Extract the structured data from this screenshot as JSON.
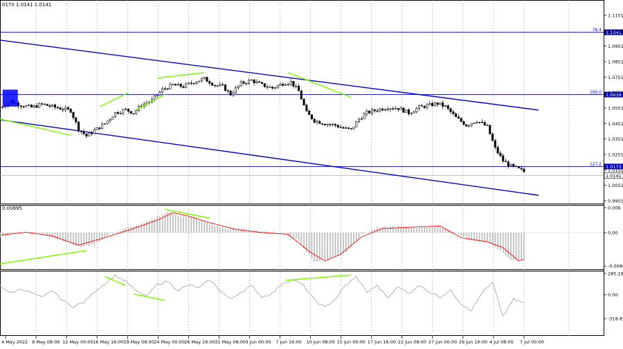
{
  "header": {
    "ohlc": "0170 1.0141 1.0141"
  },
  "colors": {
    "candle": "#000000",
    "channel": "#0000cc",
    "fibo": "#0000cc",
    "divergence": "#7cfc00",
    "macd_hist": "#b8b8b8",
    "macd_signal": "#ff0000",
    "cci_line": "#b8b8b8",
    "marker": "#0000ff",
    "grid": "#a0a0a0",
    "axis": "#000000"
  },
  "chart_data": [
    {
      "type": "candlestick",
      "panel": "price",
      "ylim": [
        0.9951,
        1.1151
      ],
      "yticks": [
        "1.1151",
        "1.1051",
        "1.0951",
        "1.0851",
        "1.0751",
        "1.0651",
        "1.0551",
        "1.0451",
        "1.0351",
        "1.0251",
        "1.0151",
        "1.0051",
        "0.9951"
      ],
      "xticks": [
        "4 May 2022",
        "9 May 08:00",
        "12 May 00:00",
        "16 May 16:00",
        "19 May 08:00",
        "24 May 00:00",
        "26 May 16:00",
        "31 May 08:00",
        "3 Jun 00:00",
        "7 Jun 16:00",
        "10 Jun 08:00",
        "15 Jun 00:00",
        "17 Jun 16:00",
        "22 Jun 08:00",
        "27 Jun 00:00",
        "29 Jun 16:00",
        "4 Jul 08:00",
        "7 Jul 00:00"
      ],
      "close_path": [
        [
          0,
          1.0555
        ],
        [
          4,
          1.0595
        ],
        [
          8,
          1.057
        ],
        [
          12,
          1.0555
        ],
        [
          16,
          1.0575
        ],
        [
          20,
          1.056
        ],
        [
          24,
          1.0545
        ],
        [
          27,
          1.0535
        ],
        [
          30,
          1.0415
        ],
        [
          33,
          1.037
        ],
        [
          36,
          1.0405
        ],
        [
          40,
          1.045
        ],
        [
          44,
          1.052
        ],
        [
          48,
          1.054
        ],
        [
          51,
          1.052
        ],
        [
          54,
          1.057
        ],
        [
          58,
          1.06
        ],
        [
          62,
          1.067
        ],
        [
          66,
          1.07
        ],
        [
          70,
          1.069
        ],
        [
          74,
          1.072
        ],
        [
          78,
          1.074
        ],
        [
          82,
          1.07
        ],
        [
          85,
          1.069
        ],
        [
          88,
          1.064
        ],
        [
          92,
          1.071
        ],
        [
          96,
          1.073
        ],
        [
          100,
          1.07
        ],
        [
          104,
          1.068
        ],
        [
          108,
          1.071
        ],
        [
          111,
          1.072
        ],
        [
          114,
          1.066
        ],
        [
          117,
          1.052
        ],
        [
          120,
          1.047
        ],
        [
          124,
          1.045
        ],
        [
          128,
          1.044
        ],
        [
          131,
          1.042
        ],
        [
          134,
          1.041
        ],
        [
          137,
          1.048
        ],
        [
          140,
          1.052
        ],
        [
          144,
          1.054
        ],
        [
          148,
          1.0555
        ],
        [
          152,
          1.055
        ],
        [
          156,
          1.052
        ],
        [
          160,
          1.0555
        ],
        [
          164,
          1.057
        ],
        [
          167,
          1.058
        ],
        [
          170,
          1.056
        ],
        [
          174,
          1.049
        ],
        [
          178,
          1.044
        ],
        [
          182,
          1.047
        ],
        [
          186,
          1.043
        ],
        [
          189,
          1.029
        ],
        [
          192,
          1.021
        ],
        [
          195,
          1.0175
        ],
        [
          198,
          1.0155
        ],
        [
          200,
          1.0141
        ]
      ],
      "last_price": "1.0141",
      "horizontal_levels": [
        {
          "price": 1.1041,
          "value_label": "1.1041",
          "fibo_label": "76.4"
        },
        {
          "price": 1.0638,
          "value_label": "1.0638",
          "fibo_label": "100.0"
        },
        {
          "price": 1.0173,
          "value_label": "1.0173",
          "fibo_label": "127.2"
        }
      ],
      "channel_lines": [
        {
          "from": [
            0,
            1.099
          ],
          "to": [
            200,
            1.055
          ]
        },
        {
          "from": [
            0,
            1.0475
          ],
          "to": [
            200,
            1.0
          ]
        }
      ],
      "divergence_lines": [
        {
          "from": [
            0,
            1.048
          ],
          "to": [
            27,
            1.0375
          ]
        },
        {
          "from": [
            38,
            1.056
          ],
          "to": [
            49,
            1.065
          ]
        },
        {
          "from": [
            52,
            1.054
          ],
          "to": [
            63,
            1.064
          ]
        },
        {
          "from": [
            60,
            1.0745
          ],
          "to": [
            78,
            1.078
          ]
        },
        {
          "from": [
            110,
            1.078
          ],
          "to": [
            134,
            1.062
          ]
        }
      ],
      "marker_box": {
        "from_x": 1,
        "to_x": 6,
        "from_y": 1.056,
        "to_y": 1.067
      }
    },
    {
      "type": "histogram",
      "panel": "macd",
      "ylim": [
        -0.008,
        0.006
      ],
      "yticks": [
        "0.006",
        "0.00",
        "-0.00802"
      ],
      "header_value": "0.00695",
      "histogram_path": [
        [
          0,
          -0.001
        ],
        [
          8,
          0.0002
        ],
        [
          16,
          -0.0003
        ],
        [
          24,
          -0.0018
        ],
        [
          30,
          -0.0035
        ],
        [
          36,
          -0.0028
        ],
        [
          42,
          -0.0004
        ],
        [
          48,
          0.001
        ],
        [
          54,
          0.002
        ],
        [
          60,
          0.0038
        ],
        [
          64,
          0.005
        ],
        [
          68,
          0.0042
        ],
        [
          74,
          0.0036
        ],
        [
          80,
          0.002
        ],
        [
          86,
          0.001
        ],
        [
          92,
          0.001
        ],
        [
          100,
          0.0002
        ],
        [
          108,
          0.0
        ],
        [
          114,
          -0.002
        ],
        [
          120,
          -0.007
        ],
        [
          126,
          -0.0062
        ],
        [
          132,
          -0.0045
        ],
        [
          138,
          -0.0005
        ],
        [
          144,
          0.0012
        ],
        [
          150,
          0.0015
        ],
        [
          156,
          0.0012
        ],
        [
          162,
          0.0014
        ],
        [
          168,
          0.0015
        ],
        [
          174,
          0.0
        ],
        [
          180,
          -0.002
        ],
        [
          186,
          -0.0022
        ],
        [
          192,
          -0.005
        ],
        [
          196,
          -0.0068
        ],
        [
          200,
          -0.0066
        ]
      ],
      "signal_path": [
        [
          0,
          -0.0006
        ],
        [
          10,
          0.0001
        ],
        [
          20,
          -0.0008
        ],
        [
          30,
          -0.003
        ],
        [
          40,
          -0.0012
        ],
        [
          50,
          0.0008
        ],
        [
          60,
          0.003
        ],
        [
          66,
          0.0048
        ],
        [
          72,
          0.004
        ],
        [
          80,
          0.0024
        ],
        [
          90,
          0.0008
        ],
        [
          100,
          0.0
        ],
        [
          110,
          -0.0004
        ],
        [
          118,
          -0.0045
        ],
        [
          124,
          -0.0068
        ],
        [
          130,
          -0.0052
        ],
        [
          138,
          -0.001
        ],
        [
          146,
          0.001
        ],
        [
          160,
          0.0014
        ],
        [
          168,
          0.0016
        ],
        [
          176,
          -0.0012
        ],
        [
          186,
          -0.0022
        ],
        [
          192,
          -0.0036
        ],
        [
          198,
          -0.0068
        ],
        [
          200,
          -0.0064
        ]
      ],
      "divergence_lines": [
        {
          "from": [
            0,
            -0.0075
          ],
          "to": [
            33,
            -0.0043
          ]
        },
        {
          "from": [
            63,
            0.0056
          ],
          "to": [
            80,
            0.0035
          ]
        }
      ]
    },
    {
      "type": "line",
      "panel": "cci",
      "ylim": [
        -318.8114,
        285.1954
      ],
      "yticks": [
        "285.1954",
        "0.00",
        "-318.8114"
      ],
      "cci_path": [
        [
          0,
          130
        ],
        [
          4,
          20
        ],
        [
          8,
          80
        ],
        [
          12,
          30
        ],
        [
          16,
          -40
        ],
        [
          20,
          60
        ],
        [
          24,
          -80
        ],
        [
          28,
          -160
        ],
        [
          32,
          -100
        ],
        [
          36,
          40
        ],
        [
          40,
          150
        ],
        [
          44,
          260
        ],
        [
          48,
          180
        ],
        [
          52,
          50
        ],
        [
          56,
          -20
        ],
        [
          60,
          140
        ],
        [
          64,
          180
        ],
        [
          68,
          60
        ],
        [
          72,
          130
        ],
        [
          76,
          90
        ],
        [
          80,
          200
        ],
        [
          84,
          60
        ],
        [
          88,
          -60
        ],
        [
          92,
          40
        ],
        [
          96,
          120
        ],
        [
          100,
          -30
        ],
        [
          104,
          20
        ],
        [
          108,
          160
        ],
        [
          112,
          200
        ],
        [
          116,
          120
        ],
        [
          120,
          -70
        ],
        [
          124,
          -170
        ],
        [
          128,
          -60
        ],
        [
          132,
          130
        ],
        [
          136,
          240
        ],
        [
          140,
          40
        ],
        [
          144,
          120
        ],
        [
          148,
          -40
        ],
        [
          152,
          110
        ],
        [
          156,
          20
        ],
        [
          160,
          120
        ],
        [
          164,
          40
        ],
        [
          168,
          -30
        ],
        [
          172,
          60
        ],
        [
          176,
          -120
        ],
        [
          180,
          -210
        ],
        [
          184,
          30
        ],
        [
          188,
          160
        ],
        [
          192,
          -290
        ],
        [
          196,
          -60
        ],
        [
          200,
          -110
        ]
      ],
      "divergence_lines": [
        {
          "from": [
            40,
            245
          ],
          "to": [
            48,
            125
          ]
        },
        {
          "from": [
            51,
            10
          ],
          "to": [
            63,
            -75
          ]
        },
        {
          "from": [
            109,
            195
          ],
          "to": [
            134,
            265
          ]
        }
      ]
    }
  ]
}
